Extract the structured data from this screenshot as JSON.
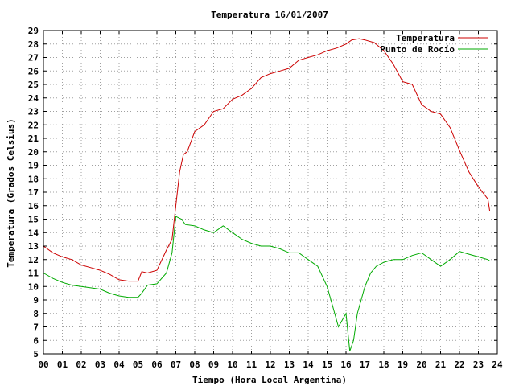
{
  "chart_data": {
    "type": "line",
    "title": "Temperatura 16/01/2007",
    "xlabel": "Tiempo (Hora Local Argentina)",
    "ylabel": "Temperatura (Grados Celsius)",
    "xlim": [
      0,
      24
    ],
    "ylim": [
      5,
      29
    ],
    "xticks": [
      "00",
      "01",
      "02",
      "03",
      "04",
      "05",
      "06",
      "07",
      "08",
      "09",
      "10",
      "11",
      "12",
      "13",
      "14",
      "15",
      "16",
      "17",
      "18",
      "19",
      "20",
      "21",
      "22",
      "23",
      "24"
    ],
    "yticks": [
      5,
      6,
      7,
      8,
      9,
      10,
      11,
      12,
      13,
      14,
      15,
      16,
      17,
      18,
      19,
      20,
      21,
      22,
      23,
      24,
      25,
      26,
      27,
      28,
      29
    ],
    "grid": true,
    "legend_position": "top-right",
    "series": [
      {
        "name": "Temperatura",
        "color": "#cc0000",
        "x": [
          0,
          0.5,
          1,
          1.5,
          2,
          2.5,
          3,
          3.5,
          4,
          4.5,
          5,
          5.2,
          5.5,
          6,
          6.5,
          6.8,
          7,
          7.2,
          7.4,
          7.6,
          8,
          8.5,
          9,
          9.5,
          10,
          10.5,
          11,
          11.5,
          12,
          12.5,
          13,
          13.5,
          14,
          14.5,
          15,
          15.5,
          16,
          16.3,
          16.7,
          17,
          17.5,
          18,
          18.5,
          19,
          19.5,
          20,
          20.5,
          21,
          21.5,
          22,
          22.5,
          23,
          23.5,
          23.6
        ],
        "y": [
          13.0,
          12.5,
          12.2,
          12.0,
          11.6,
          11.4,
          11.2,
          10.9,
          10.5,
          10.4,
          10.4,
          11.1,
          11.0,
          11.2,
          12.7,
          13.5,
          16.0,
          18.5,
          19.8,
          20.0,
          21.5,
          22.0,
          23.0,
          23.2,
          23.9,
          24.2,
          24.7,
          25.5,
          25.8,
          26.0,
          26.2,
          26.8,
          27.0,
          27.2,
          27.5,
          27.7,
          28.0,
          28.3,
          28.4,
          28.3,
          28.1,
          27.5,
          26.5,
          25.2,
          25.0,
          23.5,
          23.0,
          22.8,
          21.8,
          20.1,
          18.5,
          17.4,
          16.5,
          15.6
        ]
      },
      {
        "name": "Punto de Rocío",
        "color": "#00aa00",
        "x": [
          0,
          0.5,
          1,
          1.5,
          2,
          2.5,
          3,
          3.5,
          4,
          4.5,
          5,
          5.2,
          5.5,
          6,
          6.5,
          6.8,
          7,
          7.3,
          7.5,
          8,
          8.5,
          9,
          9.5,
          10,
          10.5,
          11,
          11.5,
          12,
          12.5,
          13,
          13.5,
          14,
          14.5,
          15,
          15.3,
          15.6,
          16,
          16.2,
          16.4,
          16.6,
          17,
          17.3,
          17.6,
          18,
          18.5,
          19,
          19.5,
          20,
          20.5,
          21,
          21.5,
          22,
          22.5,
          23,
          23.5,
          23.6
        ],
        "y": [
          11.0,
          10.6,
          10.3,
          10.1,
          10.0,
          9.9,
          9.8,
          9.5,
          9.3,
          9.2,
          9.2,
          9.5,
          10.1,
          10.2,
          11.0,
          12.5,
          15.2,
          15.0,
          14.6,
          14.5,
          14.2,
          14.0,
          14.5,
          14.0,
          13.5,
          13.2,
          13.0,
          13.0,
          12.8,
          12.5,
          12.5,
          12.0,
          11.5,
          10.0,
          8.5,
          7.0,
          8.0,
          5.2,
          6.0,
          8.0,
          10.0,
          11.0,
          11.5,
          11.8,
          12.0,
          12.0,
          12.3,
          12.5,
          12.0,
          11.5,
          12.0,
          12.6,
          12.4,
          12.2,
          12.0,
          11.9
        ]
      }
    ]
  }
}
